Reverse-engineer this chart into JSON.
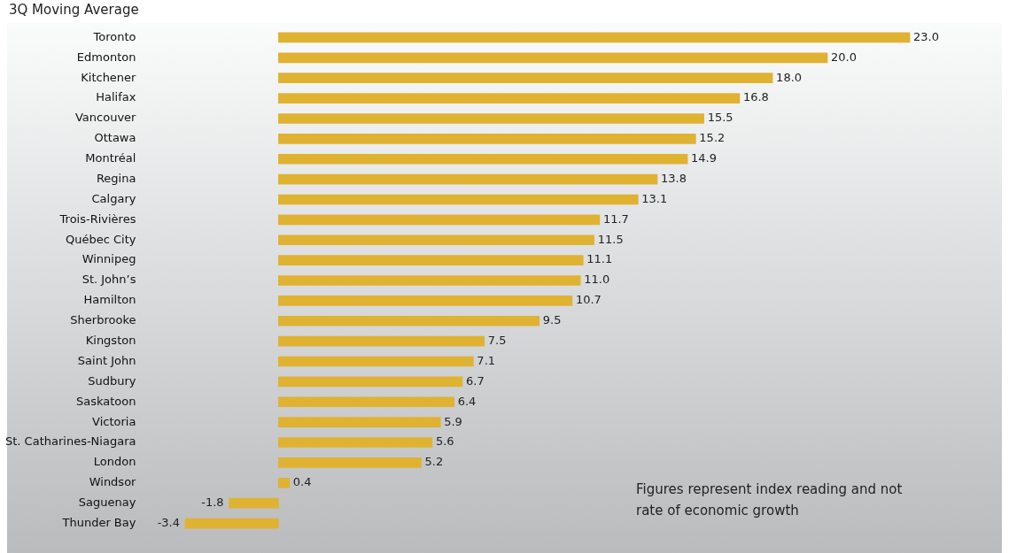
{
  "chart_data": {
    "type": "bar",
    "orientation": "horizontal",
    "title": "3Q Moving Average",
    "categories": [
      "Toronto",
      "Edmonton",
      "Kitchener",
      "Halifax",
      "Vancouver",
      "Ottawa",
      "Montréal",
      "Regina",
      "Calgary",
      "Trois-Rivières",
      "Québec City",
      "Winnipeg",
      "St. John’s",
      "Hamilton",
      "Sherbrooke",
      "Kingston",
      "Saint John",
      "Sudbury",
      "Saskatoon",
      "Victoria",
      "St. Catharines-Niagara",
      "London",
      "Windsor",
      "Saguenay",
      "Thunder Bay"
    ],
    "values": [
      23.0,
      20.0,
      18.0,
      16.8,
      15.5,
      15.2,
      14.9,
      13.8,
      13.1,
      11.7,
      11.5,
      11.1,
      11.0,
      10.7,
      9.5,
      7.5,
      7.1,
      6.7,
      6.4,
      5.9,
      5.6,
      5.2,
      0.4,
      -1.8,
      -3.4
    ],
    "value_labels": [
      "23.0",
      "20.0",
      "18.0",
      "16.8",
      "15.5",
      "15.2",
      "14.9",
      "13.8",
      "13.1",
      "11.7",
      "11.5",
      "11.1",
      "11.0",
      "10.7",
      "9.5",
      "7.5",
      "7.1",
      "6.7",
      "6.4",
      "5.9",
      "5.6",
      "5.2",
      "0.4",
      "-1.8",
      "-3.4"
    ],
    "color": "#e0b232",
    "tick_labels": "y",
    "legend": false,
    "annotations": [
      "Figures represent index reading and not rate of economic growth"
    ]
  }
}
